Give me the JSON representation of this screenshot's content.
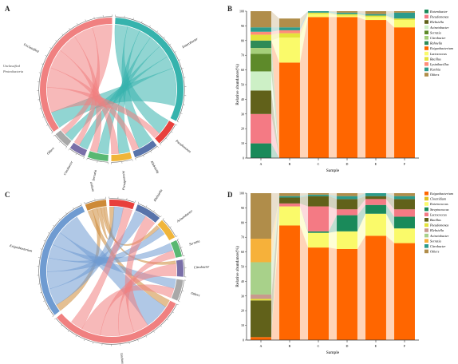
{
  "panels": {
    "a": "A",
    "b": "B",
    "c": "C",
    "d": "D"
  },
  "chart_data": [
    {
      "type": "chord",
      "panel": "A",
      "sectors": [
        {
          "name": "Enterobacter",
          "color": "#36b3ad"
        },
        {
          "name": "Pseudomonas",
          "color": "#e8403c"
        },
        {
          "name": "Klebsiella",
          "color": "#5873aa"
        },
        {
          "name": "Acinetobacter",
          "color": "#f0b53a"
        },
        {
          "name": "Serratia",
          "color": "#59b872"
        },
        {
          "name": "Citrobacter",
          "color": "#7a6fa8"
        },
        {
          "name": "Others",
          "color": "#a8a8a8"
        },
        {
          "name": "Unclassified",
          "color": "#f08080"
        }
      ],
      "faded_labels": [
        "Unclassified",
        "Proteobacteria"
      ]
    },
    {
      "type": "bar",
      "panel": "B",
      "stacked": true,
      "xlabel": "Sample",
      "ylabel": "Relative abundance(%)",
      "ylim": [
        0,
        100
      ],
      "categories": [
        "A",
        "B",
        "C",
        "D",
        "E",
        "F"
      ],
      "series": [
        {
          "name": "Enterobacter",
          "color": "#1a8a5a",
          "values": [
            10,
            0,
            0,
            0,
            0,
            0
          ]
        },
        {
          "name": "Pseudomonas",
          "color": "#f47a84",
          "values": [
            20,
            0,
            0,
            0,
            0,
            0
          ]
        },
        {
          "name": "Klebsiella",
          "color": "#61611a",
          "values": [
            16,
            0,
            0,
            0,
            0,
            0
          ]
        },
        {
          "name": "Acinetobacter",
          "color": "#cdf0c6",
          "values": [
            13,
            0,
            0,
            0,
            0,
            0
          ]
        },
        {
          "name": "Serratia",
          "color": "#5e8a2a",
          "values": [
            12,
            0,
            0,
            0,
            0,
            0
          ]
        },
        {
          "name": "Citrobacter",
          "color": "#a5cf7a",
          "values": [
            4,
            0,
            0,
            0,
            0,
            0
          ]
        },
        {
          "name": "Rahnella",
          "color": "#2e8b57",
          "values": [
            5,
            0,
            0,
            0,
            0,
            0
          ]
        },
        {
          "name": "Exiguobacterium",
          "color": "#ff6600",
          "values": [
            0,
            65,
            96,
            96,
            94,
            89
          ]
        },
        {
          "name": "Lactococcus",
          "color": "#fafa6a",
          "values": [
            0,
            17,
            2,
            1,
            2,
            5
          ]
        },
        {
          "name": "Bacillus",
          "color": "#e4e33b",
          "values": [
            4,
            3,
            1,
            1,
            1,
            1
          ]
        },
        {
          "name": "Lysinibacillus",
          "color": "#ff8c7a",
          "values": [
            2,
            2,
            0,
            0,
            0,
            0
          ]
        },
        {
          "name": "Kurthia",
          "color": "#2b9b8b",
          "values": [
            3,
            2,
            1,
            1,
            1,
            4
          ]
        },
        {
          "name": "Others",
          "color": "#b08d4a",
          "values": [
            11,
            6,
            0,
            1,
            2,
            1
          ]
        }
      ]
    },
    {
      "type": "chord",
      "panel": "C",
      "sectors": [
        {
          "name": "Clostridium",
          "color": "#cd8a38"
        },
        {
          "name": "Pseudomonas",
          "color": "#e8403c"
        },
        {
          "name": "Klebsiella",
          "color": "#5873aa"
        },
        {
          "name": "Acinetobacter",
          "color": "#f0b53a"
        },
        {
          "name": "Serratia",
          "color": "#59b872"
        },
        {
          "name": "Citrobacter",
          "color": "#7a6fa8"
        },
        {
          "name": "Others",
          "color": "#a8a8a8"
        },
        {
          "name": "Unclassified",
          "color": "#f08080"
        },
        {
          "name": "Exiguobacterium",
          "color": "#6f9bd1"
        }
      ]
    },
    {
      "type": "bar",
      "panel": "D",
      "stacked": true,
      "xlabel": "Sample",
      "ylabel": "Relative abundance(%)",
      "ylim": [
        0,
        100
      ],
      "categories": [
        "A",
        "B",
        "C",
        "D",
        "E",
        "F"
      ],
      "series": [
        {
          "name": "Exiguobacterium",
          "color": "#ff6600",
          "values": [
            2,
            78,
            63,
            62,
            71,
            66
          ]
        },
        {
          "name": "Clostridium",
          "color": "#e0c020",
          "values": [
            0,
            0,
            0,
            0,
            0,
            0
          ]
        },
        {
          "name": "Enterococcus",
          "color": "#fafa6a",
          "values": [
            0,
            13,
            10,
            12,
            15,
            10
          ]
        },
        {
          "name": "Streptococcus",
          "color": "#1a8a5a",
          "values": [
            0,
            0,
            1,
            11,
            6,
            8
          ]
        },
        {
          "name": "Lactococcus",
          "color": "#f47a84",
          "values": [
            0,
            2,
            17,
            4,
            4,
            5
          ]
        },
        {
          "name": "Bacillus",
          "color": "#61611a",
          "values": [
            25,
            4,
            7,
            7,
            2,
            7
          ]
        },
        {
          "name": "Pseudomonas",
          "color": "#e4e33b",
          "values": [
            1,
            0,
            0,
            0,
            0,
            0
          ]
        },
        {
          "name": "Klebsiella",
          "color": "#c89a8e",
          "values": [
            3,
            0,
            0,
            0,
            0,
            0
          ]
        },
        {
          "name": "Acinetobacter",
          "color": "#a8d18a",
          "values": [
            22,
            0,
            0,
            0,
            0,
            0
          ]
        },
        {
          "name": "Serratia",
          "color": "#f6b13a",
          "values": [
            16,
            0,
            0,
            0,
            0,
            0
          ]
        },
        {
          "name": "Citrobacter",
          "color": "#2b9b8b",
          "values": [
            0,
            1,
            1,
            2,
            2,
            2
          ]
        },
        {
          "name": "Others",
          "color": "#b08d4a",
          "values": [
            31,
            2,
            1,
            2,
            0,
            2
          ]
        }
      ]
    }
  ]
}
